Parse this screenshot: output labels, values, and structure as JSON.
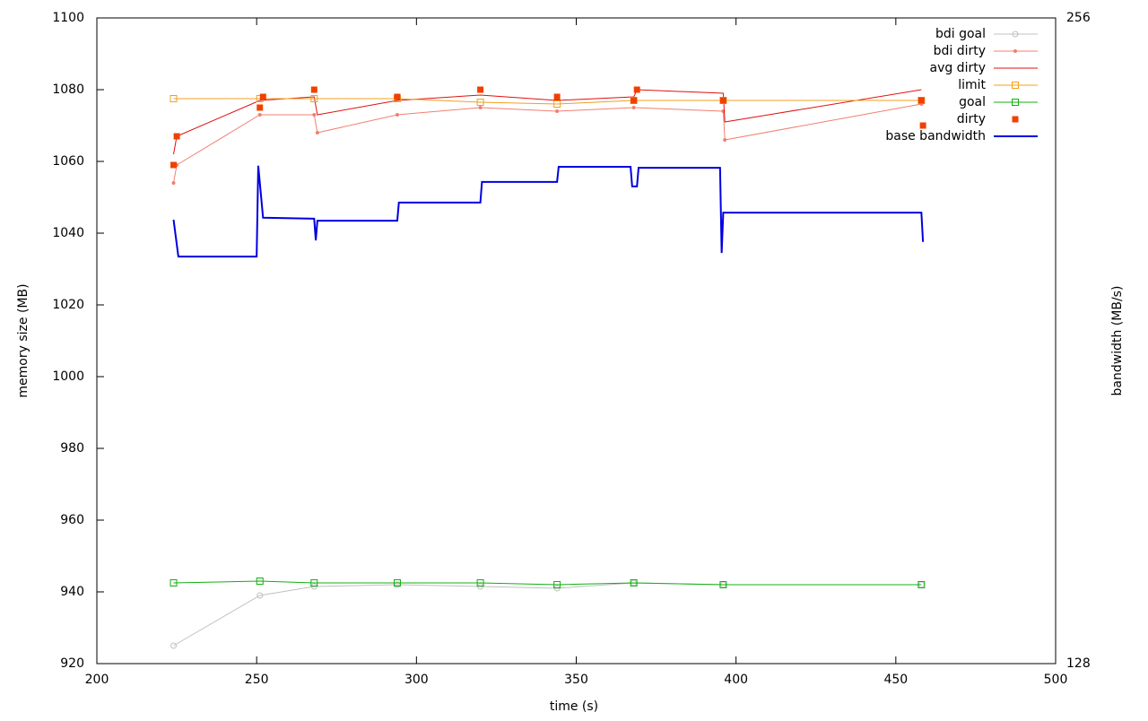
{
  "chart_data": {
    "type": "line",
    "xlabel": "time (s)",
    "ylabel": "memory size (MB)",
    "y2label": "bandwidth (MB/s)",
    "xlim": [
      200,
      500
    ],
    "xticks": [
      200,
      250,
      300,
      350,
      400,
      450,
      500
    ],
    "ylim": [
      920,
      1100
    ],
    "yticks": [
      920,
      940,
      960,
      980,
      1000,
      1020,
      1040,
      1060,
      1080,
      1100
    ],
    "y2lim": [
      128,
      256
    ],
    "y2ticks": [
      128,
      256
    ],
    "legend": "top-right",
    "series": [
      {
        "name": "bdi goal",
        "color": "#c0c0c0",
        "style": "linespoints",
        "marker": "circle",
        "x": [
          224,
          251,
          268,
          294,
          320,
          344,
          368,
          396,
          458
        ],
        "values": [
          925,
          939,
          941.5,
          942,
          941.5,
          941,
          942.5,
          942,
          942
        ]
      },
      {
        "name": "bdi dirty",
        "color": "#f08070",
        "style": "linespoints",
        "marker": "dot",
        "x": [
          224,
          225,
          251,
          268,
          269,
          294,
          320,
          344,
          368,
          396,
          396.5,
          458
        ],
        "values": [
          1054,
          1059,
          1073,
          1073,
          1068,
          1073,
          1075,
          1074,
          1075,
          1074,
          1066,
          1076
        ]
      },
      {
        "name": "avg dirty",
        "color": "#e01010",
        "style": "lines",
        "x": [
          224,
          225,
          251,
          268,
          269,
          294,
          320,
          344,
          368,
          369,
          396,
          396.5,
          458
        ],
        "values": [
          1062,
          1067,
          1077,
          1078,
          1073,
          1077,
          1078.5,
          1077,
          1078,
          1080,
          1079,
          1071,
          1080
        ]
      },
      {
        "name": "limit",
        "color": "#f0a020",
        "style": "linespoints",
        "marker": "square",
        "x": [
          224,
          251,
          268,
          294,
          320,
          344,
          368,
          396,
          458
        ],
        "values": [
          1077.5,
          1077.5,
          1077.5,
          1077.5,
          1076.5,
          1076,
          1077,
          1077,
          1077
        ]
      },
      {
        "name": "goal",
        "color": "#10b010",
        "style": "linespoints",
        "marker": "square",
        "x": [
          224,
          251,
          268,
          294,
          320,
          344,
          368,
          396,
          458
        ],
        "values": [
          942.5,
          943,
          942.5,
          942.5,
          942.5,
          942,
          942.5,
          942,
          942
        ]
      },
      {
        "name": "dirty",
        "color": "#f04000",
        "style": "points",
        "marker": "filled-square",
        "x": [
          224,
          225,
          251,
          252,
          268,
          294,
          320,
          344,
          368,
          369,
          396,
          458,
          458.5
        ],
        "values": [
          1059,
          1067,
          1075,
          1078,
          1080,
          1078,
          1080,
          1078,
          1077,
          1080,
          1077,
          1077,
          1070
        ]
      },
      {
        "name": "base bandwidth",
        "color": "#0000e0",
        "style": "steps",
        "axis": "y2",
        "x": [
          224,
          225.5,
          250,
          250.5,
          252,
          268,
          268.5,
          269,
          294,
          294.5,
          320,
          320.5,
          344,
          344.5,
          367,
          367.5,
          369,
          369.5,
          395,
          395.5,
          396,
          458,
          458.5
        ],
        "values": [
          216,
          208.7,
          208.7,
          226.7,
          216.4,
          216.2,
          211.9,
          215.8,
          215.8,
          219.4,
          219.4,
          223.5,
          223.5,
          226.5,
          226.5,
          222.6,
          222.6,
          226.3,
          226.3,
          209.4,
          217.4,
          217.4,
          211.6
        ]
      }
    ]
  }
}
